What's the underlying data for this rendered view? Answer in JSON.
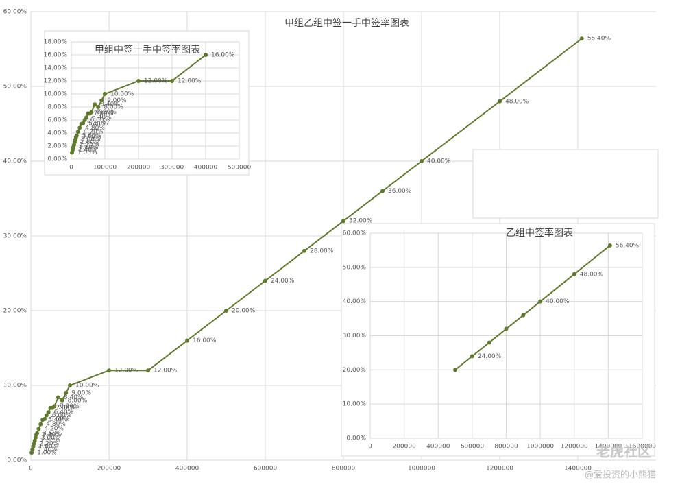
{
  "chart_data": [
    {
      "type": "line",
      "title": "甲组乙组中签一手中签率图表",
      "color": "#5f7a2c",
      "grid": true,
      "x": [
        2000,
        4000,
        6000,
        8000,
        10000,
        12000,
        14000,
        16000,
        20000,
        25000,
        30000,
        35000,
        40000,
        45000,
        50000,
        55000,
        60000,
        70000,
        80000,
        90000,
        100000,
        200000,
        300000,
        400000,
        500000,
        600000,
        700000,
        800000,
        900000,
        1000000,
        1200000,
        1410000
      ],
      "values": [
        1.0,
        1.4,
        1.8,
        2.2,
        2.6,
        3.0,
        3.4,
        3.6,
        4.2,
        4.8,
        5.4,
        5.5,
        6.0,
        6.4,
        7.0,
        7.0,
        7.2,
        8.4,
        8.0,
        9.0,
        10.0,
        12.0,
        12.0,
        16.0,
        20.0,
        24.0,
        28.0,
        32.0,
        36.0,
        40.0,
        48.0,
        56.4
      ],
      "value_labels": [
        "1.00%",
        "1.40%",
        "1.80%",
        "2.20%",
        "2.60%",
        "3.00%",
        "3.40%",
        "3.60%",
        "4.20%",
        "4.80%",
        "5.40%",
        "5.50%",
        "6.00%",
        "6.40%",
        "7.00%",
        "7.00%",
        "7.20%",
        "8.40%",
        "8.00%",
        "9.00%",
        "10.00%",
        "12.00%",
        "12.00%",
        "16.00%",
        "20.00%",
        "24.00%",
        "28.00%",
        "32.00%",
        "36.00%",
        "40.00%",
        "48.00%",
        "56.40%"
      ],
      "xlim": [
        0,
        1600000
      ],
      "xticks": [
        0,
        200000,
        400000,
        600000,
        800000,
        1000000,
        1200000,
        1400000
      ],
      "ylim": [
        0,
        60
      ],
      "yticks": [
        {
          "value": 0,
          "label": "0.00%"
        },
        {
          "value": 10,
          "label": "10.00%"
        },
        {
          "value": 20,
          "label": "20.00%"
        },
        {
          "value": 30,
          "label": "30.00%"
        },
        {
          "value": 40,
          "label": "40.00%"
        },
        {
          "value": 50,
          "label": "50.00%"
        },
        {
          "value": 60,
          "label": "60.00%"
        }
      ]
    },
    {
      "type": "line",
      "title": "甲组中签一手中签率图表",
      "color": "#5f7a2c",
      "grid": true,
      "x": [
        2000,
        4000,
        6000,
        8000,
        10000,
        12000,
        14000,
        16000,
        20000,
        25000,
        30000,
        35000,
        40000,
        45000,
        50000,
        55000,
        60000,
        70000,
        80000,
        90000,
        100000,
        200000,
        300000,
        400000
      ],
      "values": [
        1.0,
        1.4,
        1.8,
        2.2,
        2.6,
        3.0,
        3.4,
        3.6,
        4.2,
        4.8,
        5.4,
        5.5,
        6.0,
        6.4,
        7.0,
        7.0,
        7.2,
        8.4,
        8.0,
        9.0,
        10.0,
        12.0,
        12.0,
        16.0
      ],
      "value_labels": [
        "1.00%",
        "1.40%",
        "1.80%",
        "2.20%",
        "2.60%",
        "3.00%",
        "3.40%",
        "3.60%",
        "4.20%",
        "4.80%",
        "5.40%",
        "5.50%",
        "6.00%",
        "6.40%",
        "7.00%",
        "7.00%",
        "7.20%",
        "8.40%",
        "8.00%",
        "9.00%",
        "10.00%",
        "12.00%",
        "12.00%",
        "16.00%"
      ],
      "xlim": [
        0,
        500000
      ],
      "xticks": [
        0,
        100000,
        200000,
        300000,
        400000,
        500000
      ],
      "ylim": [
        0,
        18
      ],
      "yticks": [
        {
          "value": 0,
          "label": "0.00%"
        },
        {
          "value": 2,
          "label": "2.00%"
        },
        {
          "value": 4,
          "label": "4.00%"
        },
        {
          "value": 6,
          "label": "6.00%"
        },
        {
          "value": 8,
          "label": "8.00%"
        },
        {
          "value": 10,
          "label": "10.00%"
        },
        {
          "value": 12,
          "label": "12.00%"
        },
        {
          "value": 14,
          "label": "14.00%"
        },
        {
          "value": 16,
          "label": "16.00%"
        },
        {
          "value": 18,
          "label": "18.00%"
        }
      ]
    },
    {
      "type": "line",
      "title": "乙组中签率图表",
      "color": "#5f7a2c",
      "grid": true,
      "x": [
        500000,
        600000,
        700000,
        800000,
        900000,
        1000000,
        1200000,
        1410000
      ],
      "values": [
        20.0,
        24.0,
        28.0,
        32.0,
        36.0,
        40.0,
        48.0,
        56.4
      ],
      "value_labels": [
        null,
        "24.00%",
        null,
        null,
        null,
        "40.00%",
        "48.00%",
        "56.40%"
      ],
      "xlim": [
        0,
        1600000
      ],
      "xticks": [
        0,
        200000,
        400000,
        600000,
        800000,
        1000000,
        1200000,
        1400000,
        1600000
      ],
      "ylim": [
        0,
        60
      ],
      "yticks": [
        {
          "value": 0,
          "label": "0.00%"
        },
        {
          "value": 10,
          "label": "10.00%"
        },
        {
          "value": 20,
          "label": "20.00%"
        },
        {
          "value": 30,
          "label": "30.00%"
        },
        {
          "value": 40,
          "label": "40.00%"
        },
        {
          "value": 50,
          "label": "50.00%"
        },
        {
          "value": 60,
          "label": "60.00%"
        }
      ]
    }
  ],
  "watermark": {
    "brand": "老虎社区",
    "author": "@爱投资的小熊猫"
  }
}
